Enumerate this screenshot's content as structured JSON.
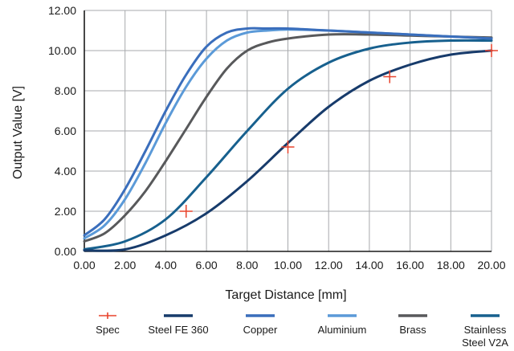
{
  "chart_data": {
    "type": "line",
    "xlabel": "Target Distance  [mm]",
    "ylabel": "Output Value  [V]",
    "xlim": [
      0,
      20
    ],
    "ylim": [
      0,
      12
    ],
    "x_ticks": [
      "0.00",
      "2.00",
      "4.00",
      "6.00",
      "8.00",
      "10.00",
      "12.00",
      "14.00",
      "16.00",
      "18.00",
      "20.00"
    ],
    "y_ticks": [
      "0.00",
      "2.00",
      "4.00",
      "6.00",
      "8.00",
      "10.00",
      "12.00"
    ],
    "grid": true,
    "legend_position": "bottom",
    "series": [
      {
        "name": "Spec",
        "style": "markers",
        "color": "#e8432c",
        "x": [
          5,
          10,
          15,
          20
        ],
        "y": [
          2.0,
          5.2,
          8.7,
          10.0
        ]
      },
      {
        "name": "Steel FE 360",
        "style": "line",
        "color": "#173b6b",
        "x": [
          0,
          2,
          4,
          6,
          8,
          10,
          12,
          14,
          16,
          18,
          20
        ],
        "y": [
          0.05,
          0.1,
          0.8,
          1.9,
          3.5,
          5.4,
          7.2,
          8.5,
          9.3,
          9.8,
          10.0
        ]
      },
      {
        "name": "Copper",
        "style": "line",
        "color": "#3a6ebc",
        "x": [
          0,
          1,
          2,
          3,
          4,
          5,
          6,
          7,
          8,
          9,
          10,
          12,
          14,
          16,
          18,
          20
        ],
        "y": [
          0.8,
          1.6,
          3.1,
          5.0,
          7.0,
          8.8,
          10.2,
          10.9,
          11.1,
          11.1,
          11.1,
          11.0,
          10.9,
          10.8,
          10.7,
          10.6
        ]
      },
      {
        "name": "Aluminium",
        "style": "line",
        "color": "#5b9ad8",
        "x": [
          0,
          1,
          2,
          3,
          4,
          5,
          6,
          7,
          8,
          9,
          10,
          12,
          14,
          16,
          18,
          20
        ],
        "y": [
          0.65,
          1.3,
          2.6,
          4.4,
          6.4,
          8.2,
          9.6,
          10.5,
          10.9,
          11.0,
          11.05,
          11.0,
          10.9,
          10.8,
          10.7,
          10.6
        ]
      },
      {
        "name": "Brass",
        "style": "line",
        "color": "#58595b",
        "x": [
          0,
          1,
          2,
          3,
          4,
          5,
          6,
          7,
          8,
          9,
          10,
          12,
          14,
          16,
          18,
          20
        ],
        "y": [
          0.5,
          0.9,
          1.8,
          3.0,
          4.5,
          6.1,
          7.7,
          9.1,
          10.0,
          10.4,
          10.6,
          10.8,
          10.8,
          10.75,
          10.7,
          10.65
        ]
      },
      {
        "name": "Stainless\nSteel V2A",
        "style": "line",
        "color": "#17608e",
        "x": [
          0,
          2,
          4,
          6,
          8,
          10,
          12,
          14,
          16,
          18,
          20
        ],
        "y": [
          0.1,
          0.5,
          1.6,
          3.7,
          6.0,
          8.1,
          9.4,
          10.1,
          10.4,
          10.5,
          10.5
        ]
      }
    ]
  }
}
